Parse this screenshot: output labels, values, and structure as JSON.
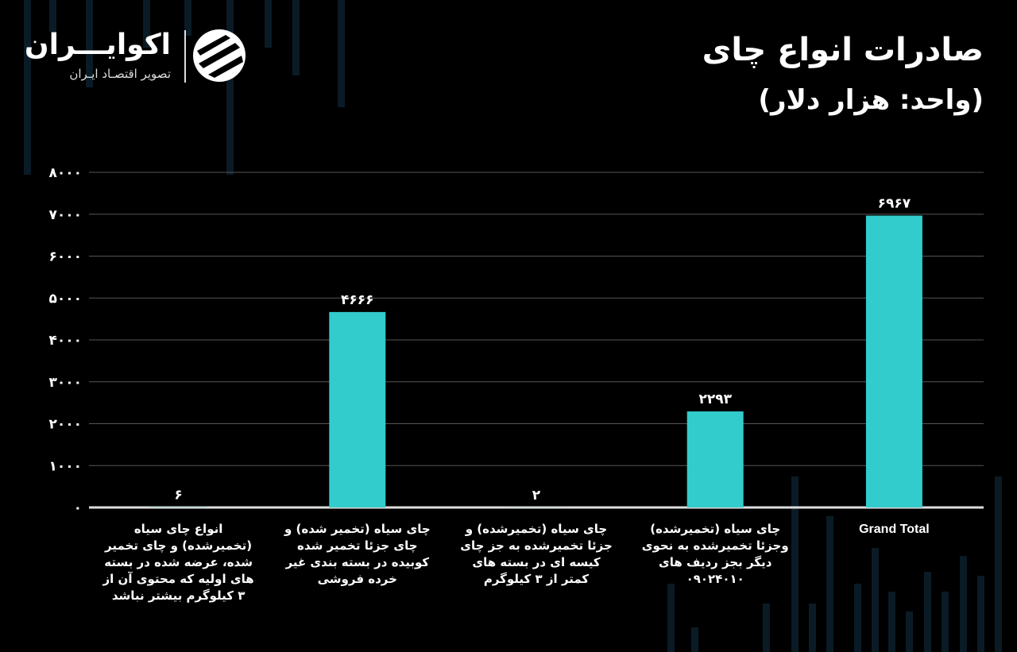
{
  "brand": {
    "name": "اکوایـــران",
    "tagline": "تصویر اقتصـاد ایـران"
  },
  "header": {
    "title": "صادرات انواع چای",
    "subtitle": "(واحد: هزار دلار)"
  },
  "colors": {
    "bar": "#33CCCC",
    "background": "#000000",
    "gridline": "#555555",
    "axis": "#dddddd"
  },
  "chart_data": {
    "type": "bar",
    "title": "صادرات انواع چای",
    "subtitle": "(واحد: هزار دلار)",
    "xlabel": "",
    "ylabel": "",
    "ylim": [
      0,
      8000
    ],
    "yticks": [
      0,
      1000,
      2000,
      3000,
      4000,
      5000,
      6000,
      7000,
      8000
    ],
    "ytick_labels": [
      "۰",
      "۱۰۰۰",
      "۲۰۰۰",
      "۳۰۰۰",
      "۴۰۰۰",
      "۵۰۰۰",
      "۶۰۰۰",
      "۷۰۰۰",
      "۸۰۰۰"
    ],
    "grid": true,
    "categories": [
      "انواع چای سیاه (تخمیرشده) و چای تخمیر شده، عرضه شده در بسته های اولیه که محتوی آن از ۳ کیلوگرم بیشتر نباشد",
      "چای سیاه (تخمیر شده) و چای جزئا تخمیر شده کوبیده در بسته بندی غیر خرده فروشی",
      "چای سیاه (تخمیرشده) و جزئا تخمیرشده به جز چای کیسه ای در بسته های کمتر از ۳ کیلوگرم",
      "چای سیاه (تخمیرشده) وجزئا تخمیرشده به نحوی دیگر بجز ردیف های ۰۹۰۲۴۰۱۰",
      "Grand Total"
    ],
    "values": [
      6,
      4666,
      2,
      2293,
      6967
    ],
    "value_labels": [
      "۶",
      "۴۶۶۶",
      "۲",
      "۲۲۹۳",
      "۶۹۶۷"
    ]
  }
}
